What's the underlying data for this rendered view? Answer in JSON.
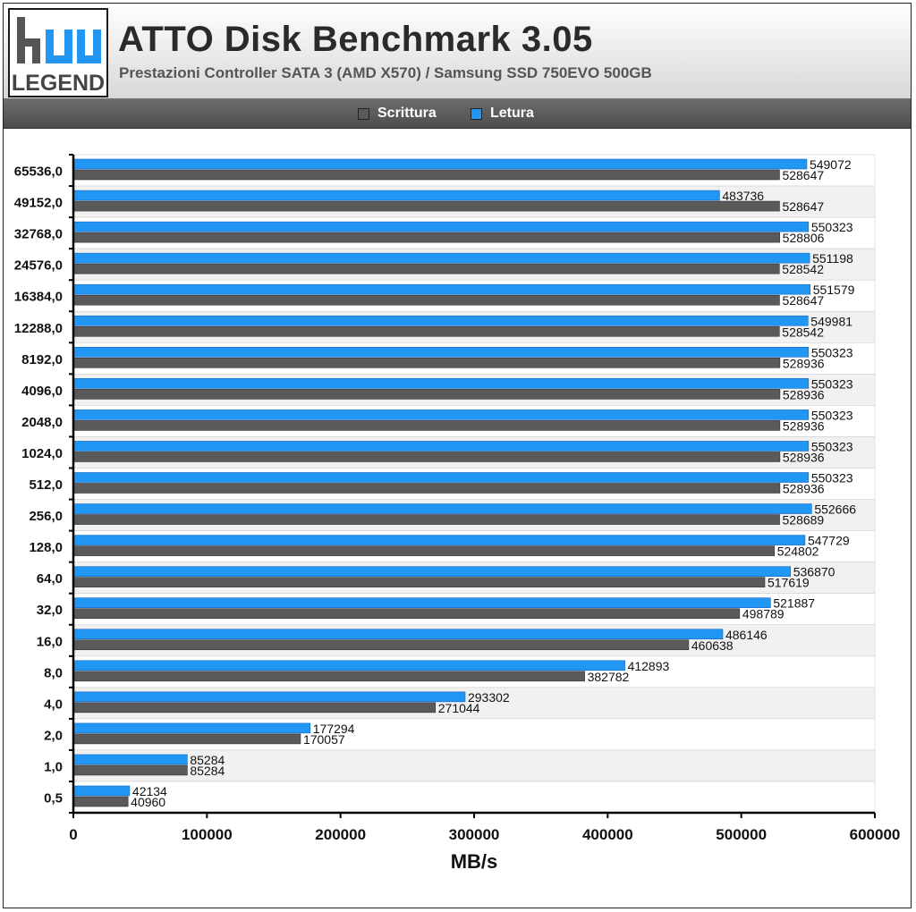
{
  "header": {
    "logo_text": "LEGEND",
    "title": "ATTO Disk Benchmark 3.05",
    "subtitle": "Prestazioni Controller SATA 3 (AMD X570) / Samsung SSD 750EVO 500GB"
  },
  "legend": [
    {
      "label": "Scrittura",
      "color": "#5a5a5a"
    },
    {
      "label": "Letura",
      "color": "#2196f3"
    }
  ],
  "chart_data": {
    "type": "bar",
    "orientation": "horizontal",
    "categories": [
      "65536,0",
      "49152,0",
      "32768,0",
      "24576,0",
      "16384,0",
      "12288,0",
      "8192,0",
      "4096,0",
      "2048,0",
      "1024,0",
      "512,0",
      "256,0",
      "128,0",
      "64,0",
      "32,0",
      "16,0",
      "8,0",
      "4,0",
      "2,0",
      "1,0",
      "0,5"
    ],
    "series": [
      {
        "name": "Letura",
        "color": "#2196f3",
        "values": [
          549072,
          483736,
          550323,
          551198,
          551579,
          549981,
          550323,
          550323,
          550323,
          550323,
          550323,
          552666,
          547729,
          536870,
          521887,
          486146,
          412893,
          293302,
          177294,
          85284,
          42134
        ]
      },
      {
        "name": "Scrittura",
        "color": "#5a5a5a",
        "values": [
          528647,
          528647,
          528806,
          528542,
          528647,
          528542,
          528936,
          528936,
          528936,
          528936,
          528936,
          528689,
          524802,
          517619,
          498789,
          460638,
          382782,
          271044,
          170057,
          85284,
          40960
        ]
      }
    ],
    "xlabel": "MB/s",
    "xlim": [
      0,
      600000
    ],
    "xticks": [
      "0",
      "100000",
      "200000",
      "300000",
      "400000",
      "500000",
      "600000"
    ],
    "xtick_values": [
      0,
      100000,
      200000,
      300000,
      400000,
      500000,
      600000
    ],
    "legend_position": "top"
  }
}
